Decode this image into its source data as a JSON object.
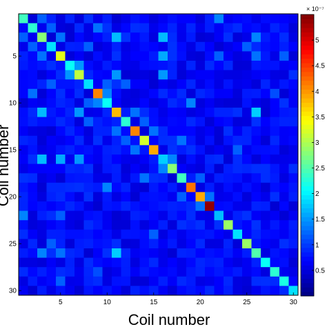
{
  "chart_data": {
    "type": "heatmap",
    "xlabel": "Coil number",
    "ylabel": "Coil number",
    "x_ticks": [
      5,
      10,
      15,
      20,
      25,
      30
    ],
    "y_ticks": [
      5,
      10,
      15,
      20,
      25,
      30
    ],
    "colorbar": {
      "colormap": "jet",
      "ticks": [
        0.5,
        1,
        1.5,
        2,
        2.5,
        3,
        3.5,
        4,
        4.5,
        5
      ],
      "exponent_label": "× 10⁻⁷",
      "range": [
        0,
        5.5
      ]
    },
    "size": 30,
    "diagonal": [
      2.4,
      2.3,
      2.8,
      1.9,
      3.3,
      2.1,
      3.1,
      1.9,
      4.1,
      2.1,
      3.8,
      2.3,
      4.1,
      3.2,
      3.9,
      1.8,
      2.8,
      2.4,
      4.2,
      3.9,
      5.4,
      1.7,
      2.9,
      1.9,
      2.9,
      2.5,
      2.1,
      2.3,
      2.2,
      1.9
    ],
    "off_diagonal": [
      {
        "row": 1,
        "col": 3,
        "value": 1.2
      },
      {
        "row": 2,
        "col": 4,
        "value": 1.2
      },
      {
        "row": 3,
        "col": 11,
        "value": 1.3
      },
      {
        "row": 4,
        "col": 8,
        "value": 1.2
      },
      {
        "row": 5,
        "col": 3,
        "value": 1.3
      },
      {
        "row": 5,
        "col": 16,
        "value": 1.6
      },
      {
        "row": 6,
        "col": 7,
        "value": 1.5
      },
      {
        "row": 7,
        "col": 16,
        "value": 1.4
      },
      {
        "row": 8,
        "col": 10,
        "value": 1.2
      },
      {
        "row": 9,
        "col": 2,
        "value": 1.3
      },
      {
        "row": 10,
        "col": 9,
        "value": 1.4
      },
      {
        "row": 11,
        "col": 3,
        "value": 1.7
      },
      {
        "row": 11,
        "col": 7,
        "value": 1.5
      },
      {
        "row": 11,
        "col": 26,
        "value": 1.9
      },
      {
        "row": 12,
        "col": 8,
        "value": 1.2
      },
      {
        "row": 13,
        "col": 11,
        "value": 1.3
      },
      {
        "row": 14,
        "col": 12,
        "value": 1.2
      },
      {
        "row": 15,
        "col": 13,
        "value": 1.3
      },
      {
        "row": 16,
        "col": 3,
        "value": 1.7
      },
      {
        "row": 16,
        "col": 7,
        "value": 1.5
      },
      {
        "row": 17,
        "col": 16,
        "value": 1.4
      },
      {
        "row": 18,
        "col": 14,
        "value": 1.3
      },
      {
        "row": 19,
        "col": 10,
        "value": 1.4
      },
      {
        "row": 20,
        "col": 18,
        "value": 1.2
      },
      {
        "row": 21,
        "col": 20,
        "value": 1.3
      },
      {
        "row": 22,
        "col": 1,
        "value": 1.4
      },
      {
        "row": 22,
        "col": 5,
        "value": 1.2
      },
      {
        "row": 24,
        "col": 15,
        "value": 1.2
      },
      {
        "row": 25,
        "col": 4,
        "value": 1.2
      },
      {
        "row": 26,
        "col": 3,
        "value": 1.4
      },
      {
        "row": 26,
        "col": 5,
        "value": 1.3
      },
      {
        "row": 26,
        "col": 11,
        "value": 1.8
      },
      {
        "row": 28,
        "col": 9,
        "value": 1.1
      },
      {
        "row": 29,
        "col": 5,
        "value": 1.2
      }
    ]
  }
}
